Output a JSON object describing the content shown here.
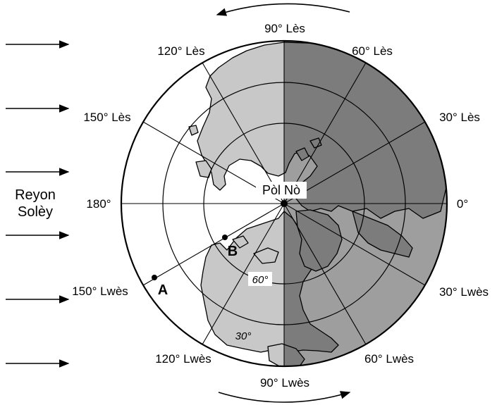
{
  "labels": {
    "pole": "Pòl Nò",
    "sun_rays_line1": "Reyon",
    "sun_rays_line2": "Solèy",
    "point_a": "A",
    "point_b": "B",
    "lat_60": "60°",
    "lat_30": "30°"
  },
  "longitudes": {
    "e90": "90° Lès",
    "e60": "60° Lès",
    "e30": "30° Lès",
    "p0": "0°",
    "w30": "30° Lwès",
    "w60": "60° Lwès",
    "w90": "90° Lwès",
    "w120": "120° Lwès",
    "w150": "150° Lwès",
    "p180": "180°",
    "e150": "150° Lès",
    "e120": "120° Lès"
  },
  "colors": {
    "night_side": "#8a8a8a",
    "day_land": "#c8c8c8",
    "ocean": "#ffffff",
    "lines": "#000000"
  }
}
